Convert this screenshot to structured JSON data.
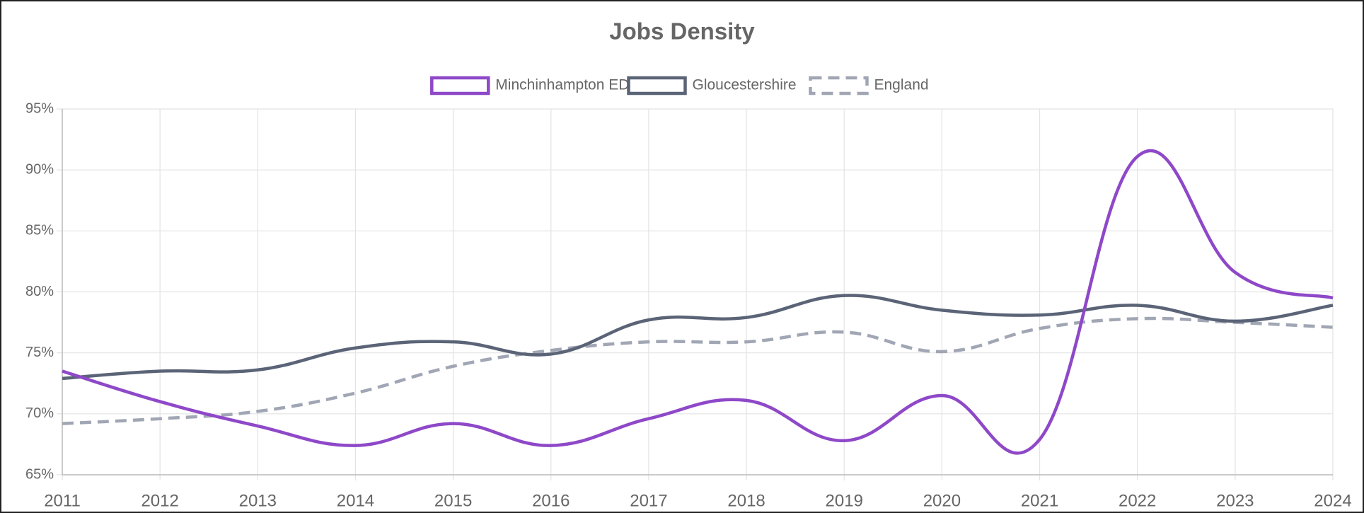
{
  "chart_data": {
    "type": "line",
    "title": "Jobs Density",
    "categories": [
      "2011",
      "2012",
      "2013",
      "2014",
      "2015",
      "2016",
      "2017",
      "2018",
      "2019",
      "2020",
      "2021",
      "2022",
      "2023",
      "2024"
    ],
    "series": [
      {
        "name": "Minchinhampton ED",
        "color": "#8e48c8",
        "dashed": false,
        "values": [
          73.5,
          71.0,
          69.0,
          67.4,
          69.2,
          67.4,
          69.6,
          71.1,
          67.8,
          71.5,
          67.9,
          91.1,
          81.6,
          79.5
        ]
      },
      {
        "name": "Gloucestershire",
        "color": "#5b6477",
        "dashed": false,
        "values": [
          72.9,
          73.5,
          73.6,
          75.4,
          75.9,
          74.9,
          77.7,
          77.9,
          79.7,
          78.5,
          78.1,
          78.9,
          77.6,
          78.9
        ]
      },
      {
        "name": "England",
        "color": "#a1a6b4",
        "dashed": true,
        "values": [
          69.2,
          69.6,
          70.2,
          71.7,
          73.9,
          75.2,
          75.9,
          75.9,
          76.7,
          75.1,
          77.0,
          77.8,
          77.5,
          77.1
        ]
      }
    ],
    "ylim": [
      65,
      95
    ],
    "yticks": [
      {
        "value": 65,
        "label": "65%"
      },
      {
        "value": 70,
        "label": "70%"
      },
      {
        "value": 75,
        "label": "75%"
      },
      {
        "value": 80,
        "label": "80%"
      },
      {
        "value": 85,
        "label": "85%"
      },
      {
        "value": 90,
        "label": "90%"
      },
      {
        "value": 95,
        "label": "95%"
      }
    ],
    "grid": true,
    "legend": "top"
  }
}
